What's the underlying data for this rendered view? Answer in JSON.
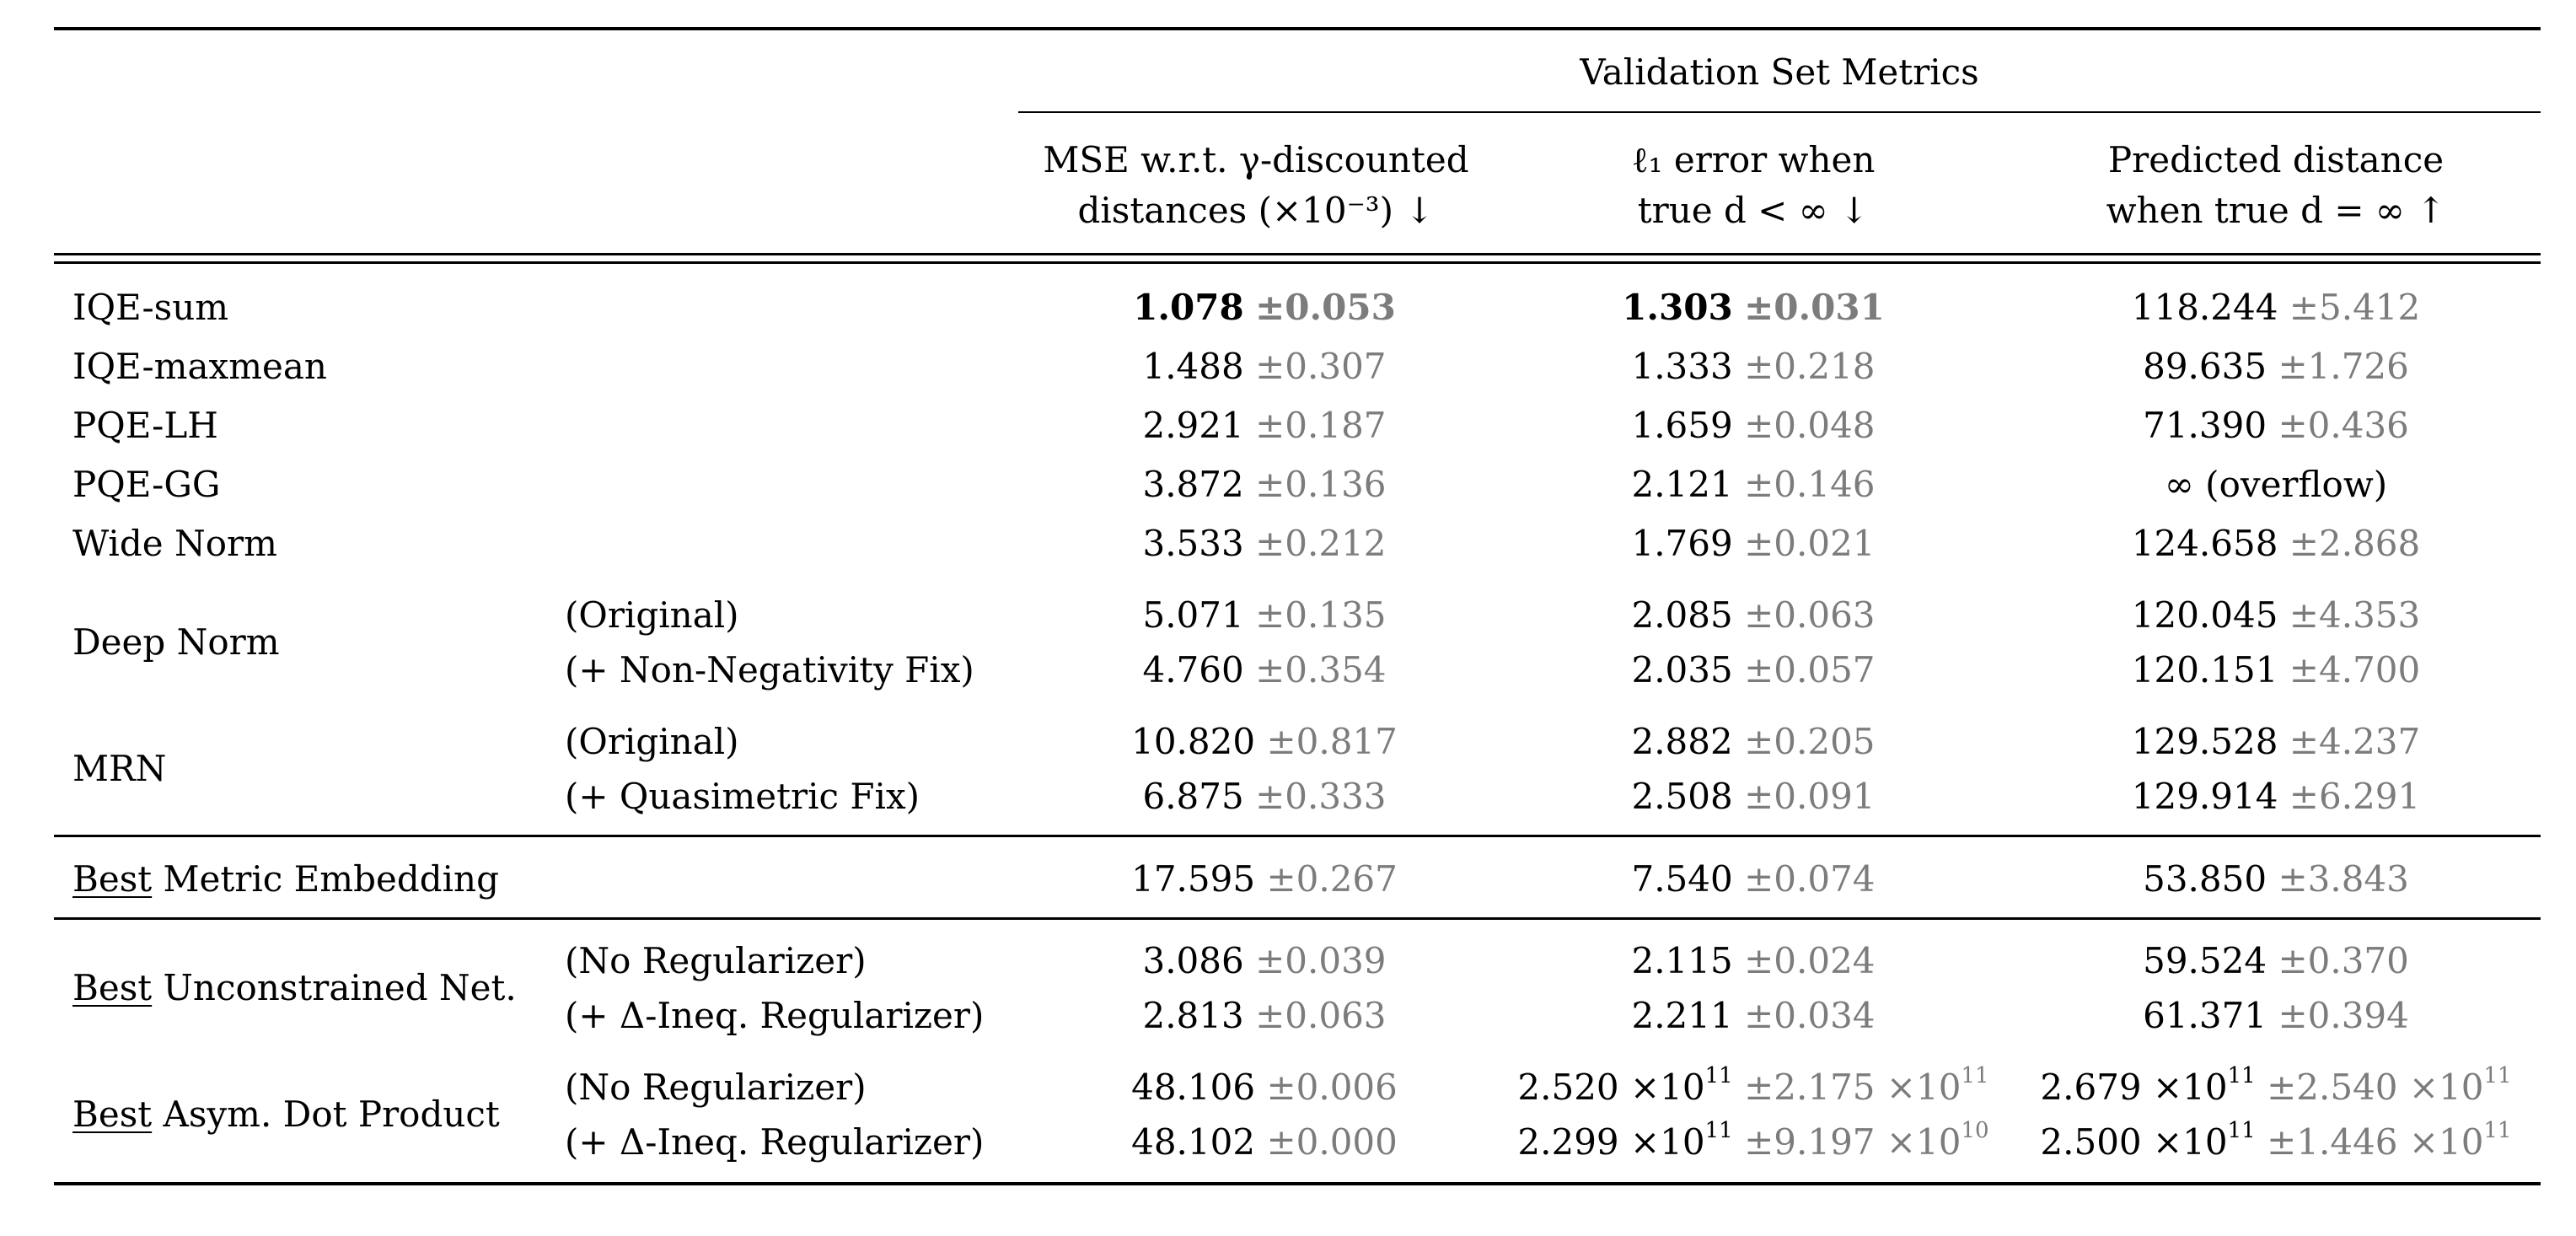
{
  "header": {
    "group_title": "Validation Set Metrics",
    "col1": [
      "MSE w.r.t. γ-discounted",
      "distances (×10⁻³) ↓"
    ],
    "col2": [
      "ℓ₁ error when",
      "true d < ∞ ↓"
    ],
    "col3": [
      "Predicted distance",
      "when true d = ∞ ↑"
    ]
  },
  "rows": [
    {
      "method": "IQE-sum",
      "variant": "",
      "c1": {
        "v": "1.078",
        "e": "±0.053",
        "bold": true
      },
      "c2": {
        "v": "1.303",
        "e": "±0.031",
        "bold": true
      },
      "c3": {
        "v": "118.244",
        "e": "±5.412"
      }
    },
    {
      "method": "IQE-maxmean",
      "variant": "",
      "c1": {
        "v": "1.488",
        "e": "±0.307"
      },
      "c2": {
        "v": "1.333",
        "e": "±0.218"
      },
      "c3": {
        "v": "89.635",
        "e": "±1.726"
      }
    },
    {
      "method": "PQE-LH",
      "variant": "",
      "c1": {
        "v": "2.921",
        "e": "±0.187"
      },
      "c2": {
        "v": "1.659",
        "e": "±0.048"
      },
      "c3": {
        "v": "71.390",
        "e": "±0.436"
      }
    },
    {
      "method": "PQE-GG",
      "variant": "",
      "c1": {
        "v": "3.872",
        "e": "±0.136"
      },
      "c2": {
        "v": "2.121",
        "e": "±0.146"
      },
      "c3": {
        "v": "∞ (overflow)",
        "e": ""
      }
    },
    {
      "method": "Wide Norm",
      "variant": "",
      "c1": {
        "v": "3.533",
        "e": "±0.212"
      },
      "c2": {
        "v": "1.769",
        "e": "±0.021"
      },
      "c3": {
        "v": "124.658",
        "e": "±2.868"
      }
    },
    {
      "method": "Deep Norm",
      "variant": "(Original)",
      "c1": {
        "v": "5.071",
        "e": "±0.135"
      },
      "c2": {
        "v": "2.085",
        "e": "±0.063"
      },
      "c3": {
        "v": "120.045",
        "e": "±4.353"
      }
    },
    {
      "method": "",
      "variant": "(+ Non-Negativity Fix)",
      "c1": {
        "v": "4.760",
        "e": "±0.354"
      },
      "c2": {
        "v": "2.035",
        "e": "±0.057"
      },
      "c3": {
        "v": "120.151",
        "e": "±4.700"
      }
    },
    {
      "method": "MRN",
      "variant": "(Original)",
      "c1": {
        "v": "10.820",
        "e": "±0.817"
      },
      "c2": {
        "v": "2.882",
        "e": "±0.205"
      },
      "c3": {
        "v": "129.528",
        "e": "±4.237"
      }
    },
    {
      "method": "",
      "variant": "(+ Quasimetric Fix)",
      "c1": {
        "v": "6.875",
        "e": "±0.333"
      },
      "c2": {
        "v": "2.508",
        "e": "±0.091"
      },
      "c3": {
        "v": "129.914",
        "e": "±6.291"
      }
    },
    {
      "method_best": "Best",
      "method": " Metric Embedding",
      "variant": "",
      "c1": {
        "v": "17.595",
        "e": "±0.267"
      },
      "c2": {
        "v": "7.540",
        "e": "±0.074"
      },
      "c3": {
        "v": "53.850",
        "e": "±3.843"
      }
    },
    {
      "method_best": "Best",
      "method": " Unconstrained Net.",
      "variant": "(No Regularizer)",
      "c1": {
        "v": "3.086",
        "e": "±0.039"
      },
      "c2": {
        "v": "2.115",
        "e": "±0.024"
      },
      "c3": {
        "v": "59.524",
        "e": "±0.370"
      }
    },
    {
      "method": "",
      "variant": "(+ Δ-Ineq. Regularizer)",
      "c1": {
        "v": "2.813",
        "e": "±0.063"
      },
      "c2": {
        "v": "2.211",
        "e": "±0.034"
      },
      "c3": {
        "v": "61.371",
        "e": "±0.394"
      }
    },
    {
      "method_best": "Best",
      "method": " Asym. Dot Product",
      "variant": "(No Regularizer)",
      "c1": {
        "v": "48.106",
        "e": "±0.006"
      },
      "c2": {
        "v": "2.520 ×10",
        "vexp": "11",
        "e": "±2.175 ×10",
        "eexp": "11"
      },
      "c3": {
        "v": "2.679 ×10",
        "vexp": "11",
        "e": "±2.540 ×10",
        "eexp": "11"
      }
    },
    {
      "method": "",
      "variant": "(+ Δ-Ineq. Regularizer)",
      "c1": {
        "v": "48.102",
        "e": "±0.000"
      },
      "c2": {
        "v": "2.299 ×10",
        "vexp": "11",
        "e": "±9.197 ×10",
        "eexp": "10"
      },
      "c3": {
        "v": "2.500 ×10",
        "vexp": "11",
        "e": "±1.446 ×10",
        "eexp": "11"
      }
    }
  ]
}
